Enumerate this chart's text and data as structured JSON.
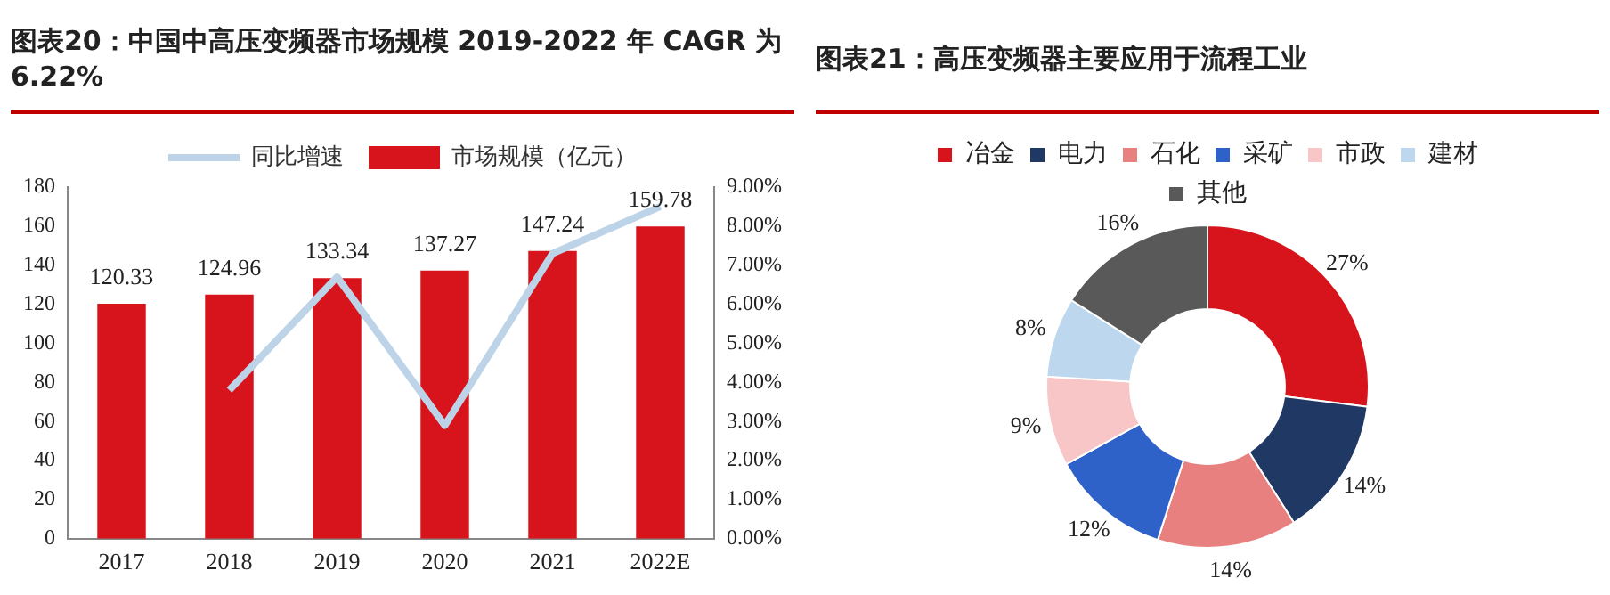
{
  "chart_data": [
    {
      "type": "bar",
      "title": "图表20：中国中高压变频器市场规模 2019-2022 年 CAGR 为 6.22%",
      "categories": [
        "2017",
        "2018",
        "2019",
        "2020",
        "2021",
        "2022E"
      ],
      "series": [
        {
          "name": "市场规模（亿元）",
          "color": "#d7141b",
          "values": [
            120.33,
            124.96,
            133.34,
            137.27,
            147.24,
            159.78
          ],
          "value_labels": [
            "120.33",
            "124.96",
            "133.34",
            "137.27",
            "147.24",
            "159.78"
          ]
        },
        {
          "name": "同比增速",
          "type": "line",
          "axis": "y2",
          "color": "#bdd3e8",
          "values": [
            null,
            3.8,
            6.7,
            2.9,
            7.3,
            8.5
          ]
        }
      ],
      "ylim": [
        0,
        180
      ],
      "yticks": [
        0,
        20,
        40,
        60,
        80,
        100,
        120,
        140,
        160,
        180
      ],
      "y2lim": [
        0,
        9
      ],
      "y2ticks": [
        {
          "value": 0,
          "label": "0.00%"
        },
        {
          "value": 1,
          "label": "1.00%"
        },
        {
          "value": 2,
          "label": "2.00%"
        },
        {
          "value": 3,
          "label": "3.00%"
        },
        {
          "value": 4,
          "label": "4.00%"
        },
        {
          "value": 5,
          "label": "5.00%"
        },
        {
          "value": 6,
          "label": "6.00%"
        },
        {
          "value": 7,
          "label": "7.00%"
        },
        {
          "value": 8,
          "label": "8.00%"
        },
        {
          "value": 9,
          "label": "9.00%"
        }
      ],
      "legend": "top",
      "grid": false,
      "marker": "none"
    },
    {
      "type": "donut",
      "title": "图表21：高压变频器主要应用于流程工业",
      "categories": [
        "冶金",
        "电力",
        "石化",
        "采矿",
        "市政",
        "建材",
        "其他"
      ],
      "values": [
        27,
        14,
        14,
        12,
        9,
        8,
        16
      ],
      "colors": [
        "#d7141b",
        "#1f3864",
        "#e88080",
        "#2e62c8",
        "#f8c6c6",
        "#bdd7ee",
        "#595959"
      ],
      "value_labels": [
        "27%",
        "14%",
        "14%",
        "12%",
        "9%",
        "8%",
        "16%"
      ],
      "legend": "top"
    }
  ]
}
